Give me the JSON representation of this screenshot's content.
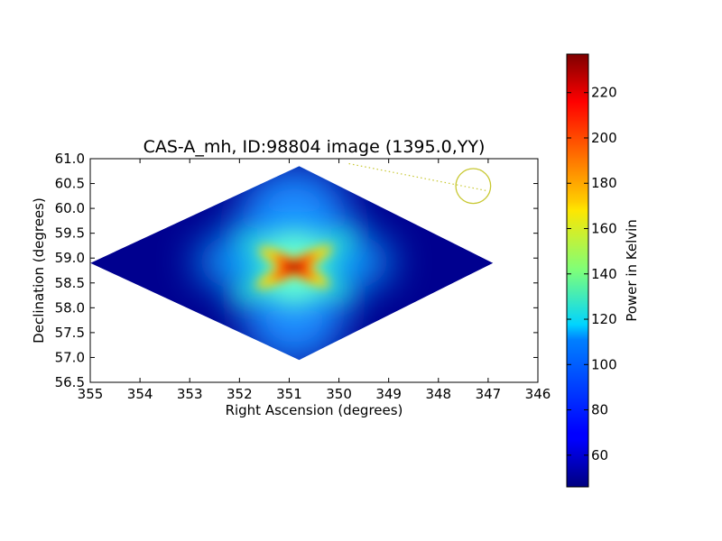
{
  "chart_data": {
    "type": "heatmap",
    "title": "CAS-A_mh, ID:98804 image (1395.0,YY)",
    "xlabel": "Right Ascension (degrees)",
    "ylabel": "Declination (degrees)",
    "colorbar_label": "Power in Kelvin",
    "colormap": "jet",
    "xlim": [
      355,
      346
    ],
    "ylim": [
      56.5,
      61.0
    ],
    "x_ticks": [
      355,
      354,
      353,
      352,
      351,
      350,
      349,
      348,
      347,
      346
    ],
    "y_ticks": [
      56.5,
      57.0,
      57.5,
      58.0,
      58.5,
      59.0,
      59.5,
      60.0,
      60.5,
      61.0
    ],
    "x_tick_labels": [
      "355",
      "354",
      "353",
      "352",
      "351",
      "350",
      "349",
      "348",
      "347",
      "346"
    ],
    "y_tick_labels": [
      "56.5",
      "57.0",
      "57.5",
      "58.0",
      "58.5",
      "59.0",
      "59.5",
      "60.0",
      "60.5",
      "61.0"
    ],
    "colorbar_range": [
      46,
      237
    ],
    "colorbar_ticks": [
      60,
      80,
      100,
      120,
      140,
      160,
      180,
      200,
      220
    ],
    "colorbar_tick_labels": [
      "60",
      "80",
      "100",
      "120",
      "140",
      "160",
      "180",
      "200",
      "220"
    ],
    "data_region": {
      "shape": "diamond",
      "vertices_ra_dec": [
        [
          355.0,
          58.9
        ],
        [
          350.8,
          60.85
        ],
        [
          346.9,
          58.9
        ],
        [
          350.8,
          56.95
        ]
      ]
    },
    "peak": {
      "ra": 350.9,
      "dec": 58.82,
      "value": 237
    },
    "background_value": 50,
    "beam_marker": {
      "ra": 347.3,
      "dec": 60.45,
      "radius_deg": 0.35,
      "color": "#c8c832"
    },
    "dotted_line": {
      "from": [
        349.8,
        60.9
      ],
      "to": [
        347.0,
        60.35
      ],
      "color": "#c8c832"
    }
  }
}
